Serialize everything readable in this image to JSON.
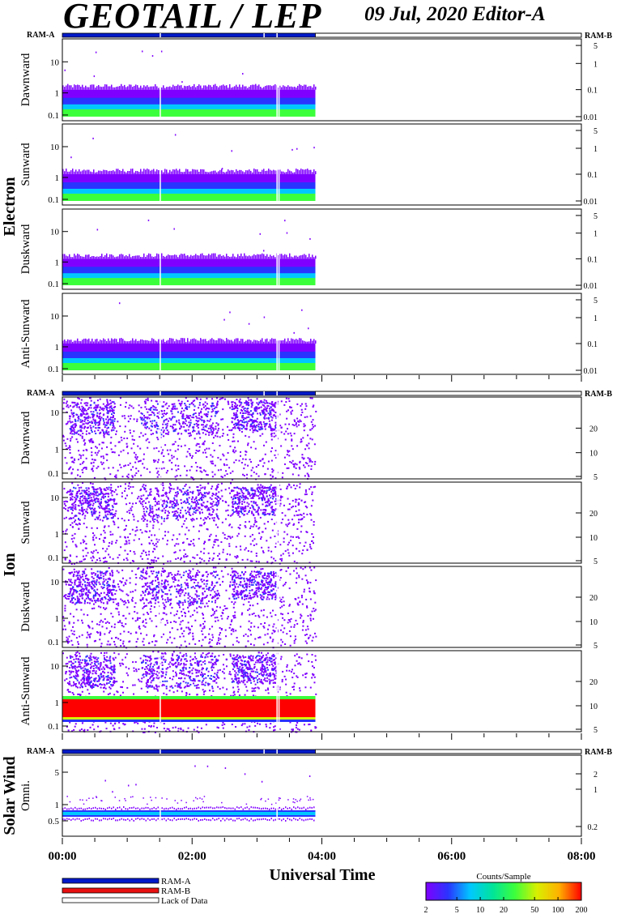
{
  "header": {
    "title": "GEOTAIL / LEP",
    "date_editor": "09 Jul, 2020   Editor-A"
  },
  "colors": {
    "ram_a": "#0019c8",
    "ram_b": "#e81010",
    "lack": "#ffffff",
    "colormap": [
      "#8000ff",
      "#2a34ff",
      "#00c8ff",
      "#00e49a",
      "#3cff3c",
      "#d8f000",
      "#ffb000",
      "#ff0000"
    ]
  },
  "chart_data": {
    "type": "heatmap",
    "xlabel": "Universal Time",
    "x_ticks": [
      "00:00",
      "02:00",
      "04:00",
      "06:00",
      "08:00"
    ],
    "x_range_hours": [
      0,
      8
    ],
    "data_coverage_hours": [
      0.0,
      3.9
    ],
    "ram_labels": {
      "left": "RAM-A",
      "right": "RAM-B"
    },
    "groups": [
      {
        "name": "Electron",
        "panels": [
          {
            "label": "Dawnward",
            "y_ticks": [
              "10",
              "1",
              "0.1"
            ],
            "y2_ticks": [
              "5",
              "1",
              "0.1",
              "0.01"
            ]
          },
          {
            "label": "Sunward",
            "y_ticks": [
              "10",
              "1",
              "0.1"
            ],
            "y2_ticks": [
              "5",
              "1",
              "0.1",
              "0.01"
            ]
          },
          {
            "label": "Duskward",
            "y_ticks": [
              "10",
              "1",
              "0.1"
            ],
            "y2_ticks": [
              "5",
              "1",
              "0.1",
              "0.01"
            ]
          },
          {
            "label": "Anti-Sunward",
            "y_ticks": [
              "10",
              "1",
              "0.1"
            ],
            "y2_ticks": [
              "5",
              "1",
              "0.1",
              "0.01"
            ]
          }
        ]
      },
      {
        "name": "Ion",
        "panels": [
          {
            "label": "Dawnward",
            "y_ticks": [
              "10",
              "1",
              "0.1"
            ],
            "y2_ticks": [
              "20",
              "10",
              "5"
            ]
          },
          {
            "label": "Sunward",
            "y_ticks": [
              "10",
              "1",
              "0.1"
            ],
            "y2_ticks": [
              "20",
              "10",
              "5"
            ]
          },
          {
            "label": "Duskward",
            "y_ticks": [
              "10",
              "1",
              "0.1"
            ],
            "y2_ticks": [
              "20",
              "10",
              "5"
            ]
          },
          {
            "label": "Anti-Sunward",
            "y_ticks": [
              "10",
              "1",
              "0.1"
            ],
            "y2_ticks": [
              "20",
              "10",
              "5"
            ]
          }
        ]
      },
      {
        "name": "Solar Wind",
        "panels": [
          {
            "label": "Omni.",
            "y_ticks": [
              "5",
              "1",
              "0.5"
            ],
            "y2_ticks": [
              "2",
              "1",
              "0.2"
            ]
          }
        ]
      }
    ],
    "legend": [
      {
        "label": "RAM-A",
        "color": "#0019c8"
      },
      {
        "label": "RAM-B",
        "color": "#e81010"
      },
      {
        "label": "Lack of Data",
        "color": "#ffffff"
      }
    ],
    "colorbar": {
      "title": "Counts/Sample",
      "ticks": [
        "2",
        "5",
        "10",
        "20",
        "50",
        "100",
        "200"
      ],
      "range": [
        2,
        200
      ],
      "scale": "log"
    }
  }
}
